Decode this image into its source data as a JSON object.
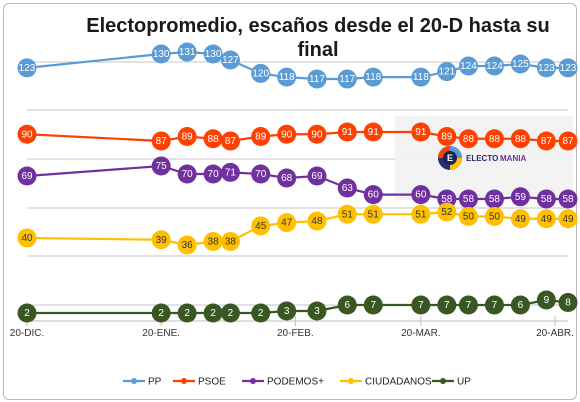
{
  "chart_data": {
    "type": "line",
    "title_lines": [
      "Electopromedio, escaños desde el 20-D hasta su",
      "final"
    ],
    "x_tick_labels": [
      "20-DIC.",
      "20-ENE.",
      "20-FEB.",
      "20-MAR.",
      "20-ABR."
    ],
    "x_tick_days": [
      0,
      31,
      62,
      91,
      122
    ],
    "grid": true,
    "legend_position": "bottom",
    "series": [
      {
        "name": "PP",
        "color": "#5b9bd5",
        "text_color": "#ffffff",
        "x": [
          0,
          31,
          37,
          43,
          47,
          54,
          60,
          67,
          74,
          80,
          91,
          97,
          102,
          108,
          114,
          120,
          125
        ],
        "values": [
          123,
          130,
          131,
          130,
          127,
          120,
          118,
          117,
          117,
          118,
          118,
          121,
          124,
          124,
          125,
          123,
          123
        ]
      },
      {
        "name": "PSOE",
        "color": "#fe4000",
        "text_color": "#ffffff",
        "x": [
          0,
          31,
          37,
          43,
          47,
          54,
          60,
          67,
          74,
          80,
          91,
          97,
          102,
          108,
          114,
          120,
          125
        ],
        "values": [
          90,
          87,
          89,
          88,
          87,
          89,
          90,
          90,
          91,
          91,
          91,
          89,
          88,
          88,
          88,
          87,
          87
        ]
      },
      {
        "name": "PODEMOS+",
        "color": "#7030a0",
        "text_color": "#ffffff",
        "x": [
          0,
          31,
          37,
          43,
          47,
          54,
          60,
          67,
          74,
          80,
          91,
          97,
          102,
          108,
          114,
          120,
          125
        ],
        "values": [
          69,
          75,
          70,
          70,
          71,
          70,
          68,
          69,
          63,
          60,
          60,
          58,
          58,
          58,
          59,
          58,
          58
        ]
      },
      {
        "name": "CIUDADANOS",
        "color": "#ffc000",
        "text_color": "#333333",
        "x": [
          0,
          31,
          37,
          43,
          47,
          54,
          60,
          67,
          74,
          80,
          91,
          97,
          102,
          108,
          114,
          120,
          125
        ],
        "values": [
          40,
          39,
          36,
          38,
          38,
          45,
          47,
          48,
          51,
          51,
          51,
          52,
          50,
          50,
          49,
          49,
          49
        ]
      },
      {
        "name": "UP",
        "color": "#385723",
        "text_color": "#ffffff",
        "x": [
          0,
          31,
          37,
          43,
          47,
          54,
          60,
          67,
          74,
          80,
          91,
          97,
          102,
          108,
          114,
          120,
          125
        ],
        "values": [
          2,
          2,
          2,
          2,
          2,
          2,
          3,
          3,
          6,
          7,
          7,
          7,
          7,
          7,
          6,
          9,
          8
        ]
      }
    ]
  },
  "logo": {
    "text_a": "ELECTO",
    "text_b": "MANIA"
  }
}
